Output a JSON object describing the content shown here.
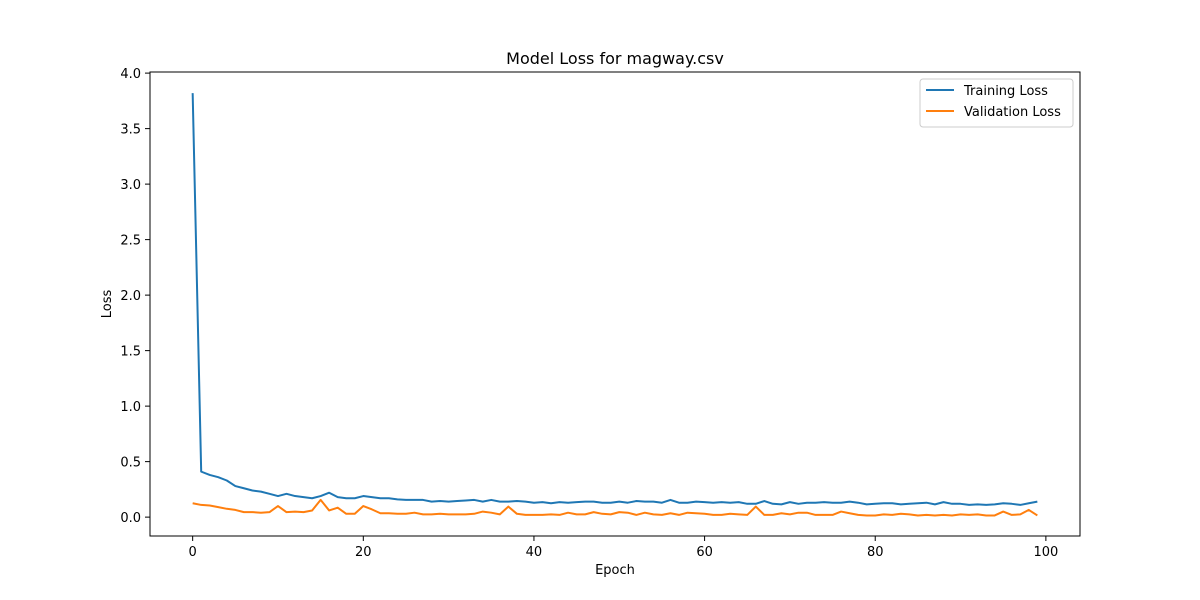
{
  "chart_data": {
    "type": "line",
    "title": "Model Loss for magway.csv",
    "xlabel": "Epoch",
    "ylabel": "Loss",
    "xlim": [
      -5,
      104
    ],
    "ylim": [
      -0.17,
      4.01
    ],
    "xticks": [
      0,
      20,
      40,
      60,
      80,
      100
    ],
    "yticks": [
      0.0,
      0.5,
      1.0,
      1.5,
      2.0,
      2.5,
      3.0,
      3.5,
      4.0
    ],
    "ytick_labels": [
      "0.0",
      "0.5",
      "1.0",
      "1.5",
      "2.0",
      "2.5",
      "3.0",
      "3.5",
      "4.0"
    ],
    "grid": false,
    "legend_position": "top-right",
    "x": [
      0,
      1,
      2,
      3,
      4,
      5,
      6,
      7,
      8,
      9,
      10,
      11,
      12,
      13,
      14,
      15,
      16,
      17,
      18,
      19,
      20,
      21,
      22,
      23,
      24,
      25,
      26,
      27,
      28,
      29,
      30,
      31,
      32,
      33,
      34,
      35,
      36,
      37,
      38,
      39,
      40,
      41,
      42,
      43,
      44,
      45,
      46,
      47,
      48,
      49,
      50,
      51,
      52,
      53,
      54,
      55,
      56,
      57,
      58,
      59,
      60,
      61,
      62,
      63,
      64,
      65,
      66,
      67,
      68,
      69,
      70,
      71,
      72,
      73,
      74,
      75,
      76,
      77,
      78,
      79,
      80,
      81,
      82,
      83,
      84,
      85,
      86,
      87,
      88,
      89,
      90,
      91,
      92,
      93,
      94,
      95,
      96,
      97,
      98,
      99
    ],
    "series": [
      {
        "name": "Training Loss",
        "color": "#1f77b4",
        "values": [
          3.82,
          0.41,
          0.38,
          0.36,
          0.33,
          0.28,
          0.26,
          0.24,
          0.23,
          0.21,
          0.19,
          0.21,
          0.19,
          0.18,
          0.17,
          0.19,
          0.22,
          0.18,
          0.17,
          0.17,
          0.19,
          0.18,
          0.17,
          0.17,
          0.16,
          0.155,
          0.155,
          0.155,
          0.14,
          0.145,
          0.14,
          0.145,
          0.15,
          0.155,
          0.14,
          0.155,
          0.14,
          0.14,
          0.145,
          0.14,
          0.13,
          0.135,
          0.125,
          0.135,
          0.13,
          0.135,
          0.14,
          0.14,
          0.13,
          0.13,
          0.14,
          0.13,
          0.145,
          0.14,
          0.14,
          0.13,
          0.155,
          0.13,
          0.13,
          0.14,
          0.135,
          0.13,
          0.135,
          0.13,
          0.135,
          0.12,
          0.12,
          0.145,
          0.12,
          0.115,
          0.135,
          0.12,
          0.13,
          0.13,
          0.135,
          0.13,
          0.13,
          0.14,
          0.13,
          0.115,
          0.12,
          0.125,
          0.125,
          0.115,
          0.12,
          0.125,
          0.13,
          0.115,
          0.135,
          0.12,
          0.12,
          0.11,
          0.115,
          0.11,
          0.115,
          0.125,
          0.12,
          0.11,
          0.125,
          0.14
        ]
      },
      {
        "name": "Validation Loss",
        "color": "#ff7f0e",
        "values": [
          0.125,
          0.11,
          0.105,
          0.09,
          0.075,
          0.065,
          0.045,
          0.045,
          0.04,
          0.045,
          0.1,
          0.045,
          0.05,
          0.045,
          0.06,
          0.155,
          0.06,
          0.085,
          0.03,
          0.03,
          0.1,
          0.07,
          0.035,
          0.035,
          0.03,
          0.03,
          0.04,
          0.025,
          0.025,
          0.03,
          0.025,
          0.025,
          0.025,
          0.03,
          0.05,
          0.04,
          0.025,
          0.095,
          0.03,
          0.02,
          0.02,
          0.02,
          0.025,
          0.02,
          0.04,
          0.025,
          0.025,
          0.045,
          0.03,
          0.025,
          0.045,
          0.04,
          0.02,
          0.04,
          0.025,
          0.02,
          0.035,
          0.02,
          0.04,
          0.035,
          0.03,
          0.02,
          0.02,
          0.03,
          0.025,
          0.02,
          0.095,
          0.02,
          0.02,
          0.035,
          0.025,
          0.04,
          0.04,
          0.02,
          0.02,
          0.02,
          0.05,
          0.035,
          0.02,
          0.015,
          0.015,
          0.025,
          0.02,
          0.03,
          0.025,
          0.015,
          0.02,
          0.015,
          0.02,
          0.015,
          0.025,
          0.02,
          0.025,
          0.015,
          0.015,
          0.05,
          0.02,
          0.025,
          0.065,
          0.015
        ]
      }
    ]
  }
}
